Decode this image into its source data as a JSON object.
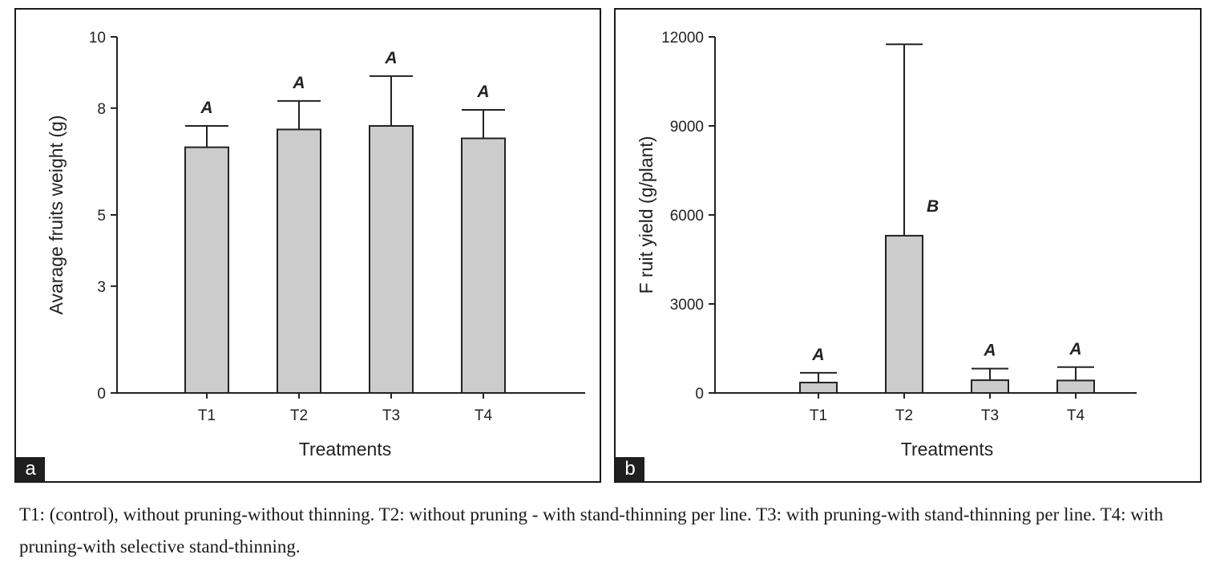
{
  "chart_data": [
    {
      "panel": "a",
      "type": "bar",
      "categories": [
        "T1",
        "T2",
        "T3",
        "T4"
      ],
      "values": [
        6.9,
        7.4,
        7.5,
        7.15
      ],
      "error_upper": [
        7.5,
        8.2,
        8.9,
        7.95
      ],
      "significance_letters": [
        "A",
        "A",
        "A",
        "A"
      ],
      "ylim": [
        0,
        10
      ],
      "yticks": [
        0,
        3,
        5,
        8,
        10
      ],
      "xlabel": "Treatments",
      "ylabel": "Avarage fruits weight (g)",
      "bar_color": "#cccccc"
    },
    {
      "panel": "b",
      "type": "bar",
      "categories": [
        "T1",
        "T2",
        "T3",
        "T4"
      ],
      "values": [
        350,
        5300,
        430,
        420
      ],
      "error_upper": [
        680,
        11750,
        820,
        870
      ],
      "significance_letters": [
        "A",
        "B",
        "A",
        "A"
      ],
      "ylim": [
        0,
        12000
      ],
      "yticks": [
        0,
        3000,
        6000,
        9000,
        12000
      ],
      "xlabel": "Treatments",
      "ylabel": "F ruit yield (g/plant)",
      "bar_color": "#cccccc"
    }
  ],
  "caption": "T1: (control), without pruning-without thinning. T2: without pruning - with stand-thinning per line. T3: with pruning-with stand-thinning per line. T4: with pruning-with selective stand-thinning."
}
